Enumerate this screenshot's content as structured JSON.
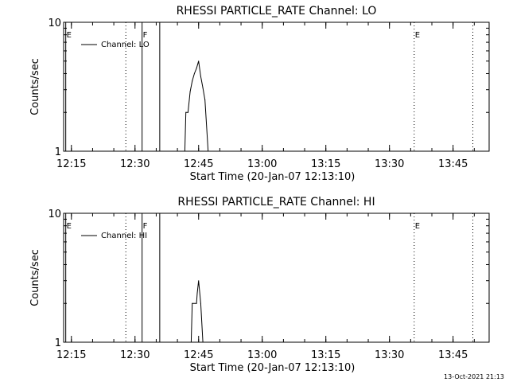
{
  "footer_timestamp": "13-Oct-2021 21:13",
  "chart_data": [
    {
      "type": "line",
      "title": "RHESSI PARTICLE_RATE Channel: LO",
      "xlabel": "Start Time (20-Jan-07 12:13:10)",
      "ylabel": "Counts/sec",
      "y_scale": "log",
      "ylim": [
        1,
        10
      ],
      "y_ticks": [
        {
          "value": 1,
          "label": "1"
        },
        {
          "value": 10,
          "label": "10"
        }
      ],
      "xlim": [
        "12:13:10",
        "13:53:30"
      ],
      "x_ticks": [
        "12:15",
        "12:30",
        "12:45",
        "13:00",
        "13:15",
        "13:30",
        "13:45"
      ],
      "legend": {
        "label": "Channel: LO",
        "placement": "top-left"
      },
      "event_markers": [
        {
          "time": "12:13:40",
          "label": "E",
          "style": "solid"
        },
        {
          "time": "12:27:50",
          "label": "",
          "style": "dotted"
        },
        {
          "time": "12:31:40",
          "label": "F",
          "style": "solid"
        },
        {
          "time": "12:35:50",
          "label": "",
          "style": "solid"
        },
        {
          "time": "13:35:50",
          "label": "E",
          "style": "dotted"
        },
        {
          "time": "13:49:40",
          "label": "",
          "style": "dotted"
        }
      ],
      "series": [
        {
          "x": [
            "12:41:45",
            "12:42:00",
            "12:42:30",
            "12:43:00",
            "12:43:30",
            "12:44:00",
            "12:44:30",
            "12:45:00",
            "12:45:30",
            "12:46:00",
            "12:46:30",
            "12:47:15"
          ],
          "values": [
            1,
            2,
            2,
            2.9,
            3.5,
            4,
            4.4,
            5,
            3.8,
            3.1,
            2.5,
            1
          ]
        }
      ]
    },
    {
      "type": "line",
      "title": "RHESSI PARTICLE_RATE Channel: HI",
      "xlabel": "Start Time (20-Jan-07 12:13:10)",
      "ylabel": "Counts/sec",
      "y_scale": "log",
      "ylim": [
        1,
        10
      ],
      "y_ticks": [
        {
          "value": 1,
          "label": "1"
        },
        {
          "value": 10,
          "label": "10"
        }
      ],
      "xlim": [
        "12:13:10",
        "13:53:30"
      ],
      "x_ticks": [
        "12:15",
        "12:30",
        "12:45",
        "13:00",
        "13:15",
        "13:30",
        "13:45"
      ],
      "legend": {
        "label": "Channel: HI",
        "placement": "top-left"
      },
      "event_markers": [
        {
          "time": "12:13:40",
          "label": "E",
          "style": "solid"
        },
        {
          "time": "12:27:50",
          "label": "",
          "style": "dotted"
        },
        {
          "time": "12:31:40",
          "label": "F",
          "style": "solid"
        },
        {
          "time": "12:35:50",
          "label": "",
          "style": "solid"
        },
        {
          "time": "13:35:50",
          "label": "E",
          "style": "dotted"
        },
        {
          "time": "13:49:40",
          "label": "",
          "style": "dotted"
        }
      ],
      "series": [
        {
          "x": [
            "12:43:15",
            "12:43:30",
            "12:44:30",
            "12:44:40",
            "12:45:00",
            "12:45:30",
            "12:46:00"
          ],
          "values": [
            1,
            2,
            2,
            2.4,
            3,
            2,
            1
          ]
        }
      ]
    }
  ]
}
